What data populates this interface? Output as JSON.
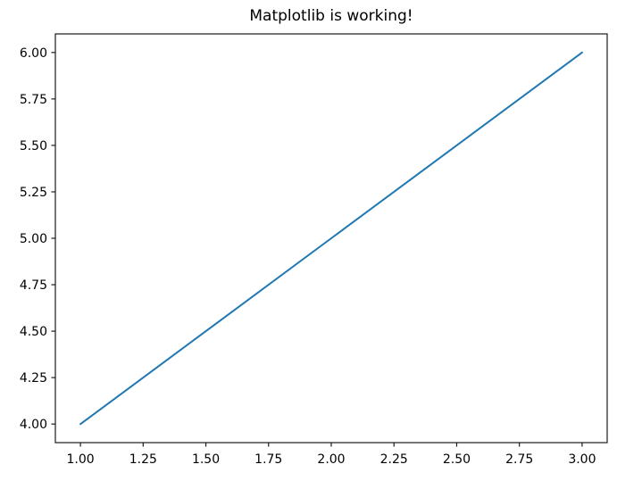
{
  "chart_data": {
    "type": "line",
    "title": "Matplotlib is working!",
    "xlabel": "",
    "ylabel": "",
    "x": [
      1,
      2,
      3
    ],
    "y": [
      4,
      5,
      6
    ],
    "xlim": [
      0.9,
      3.1
    ],
    "ylim": [
      3.9,
      6.1
    ],
    "xticks": [
      1.0,
      1.25,
      1.5,
      1.75,
      2.0,
      2.25,
      2.5,
      2.75,
      3.0
    ],
    "xtick_labels": [
      "1.00",
      "1.25",
      "1.50",
      "1.75",
      "2.00",
      "2.25",
      "2.50",
      "2.75",
      "3.00"
    ],
    "yticks": [
      4.0,
      4.25,
      4.5,
      4.75,
      5.0,
      5.25,
      5.5,
      5.75,
      6.0
    ],
    "ytick_labels": [
      "4.00",
      "4.25",
      "4.50",
      "4.75",
      "5.00",
      "5.25",
      "5.50",
      "5.75",
      "6.00"
    ],
    "grid": false,
    "legend": "none",
    "line_color": "#1f77b4",
    "axes_edge_color": "#1a1a1a",
    "text_color": "#000000",
    "background_color": "#ffffff"
  }
}
